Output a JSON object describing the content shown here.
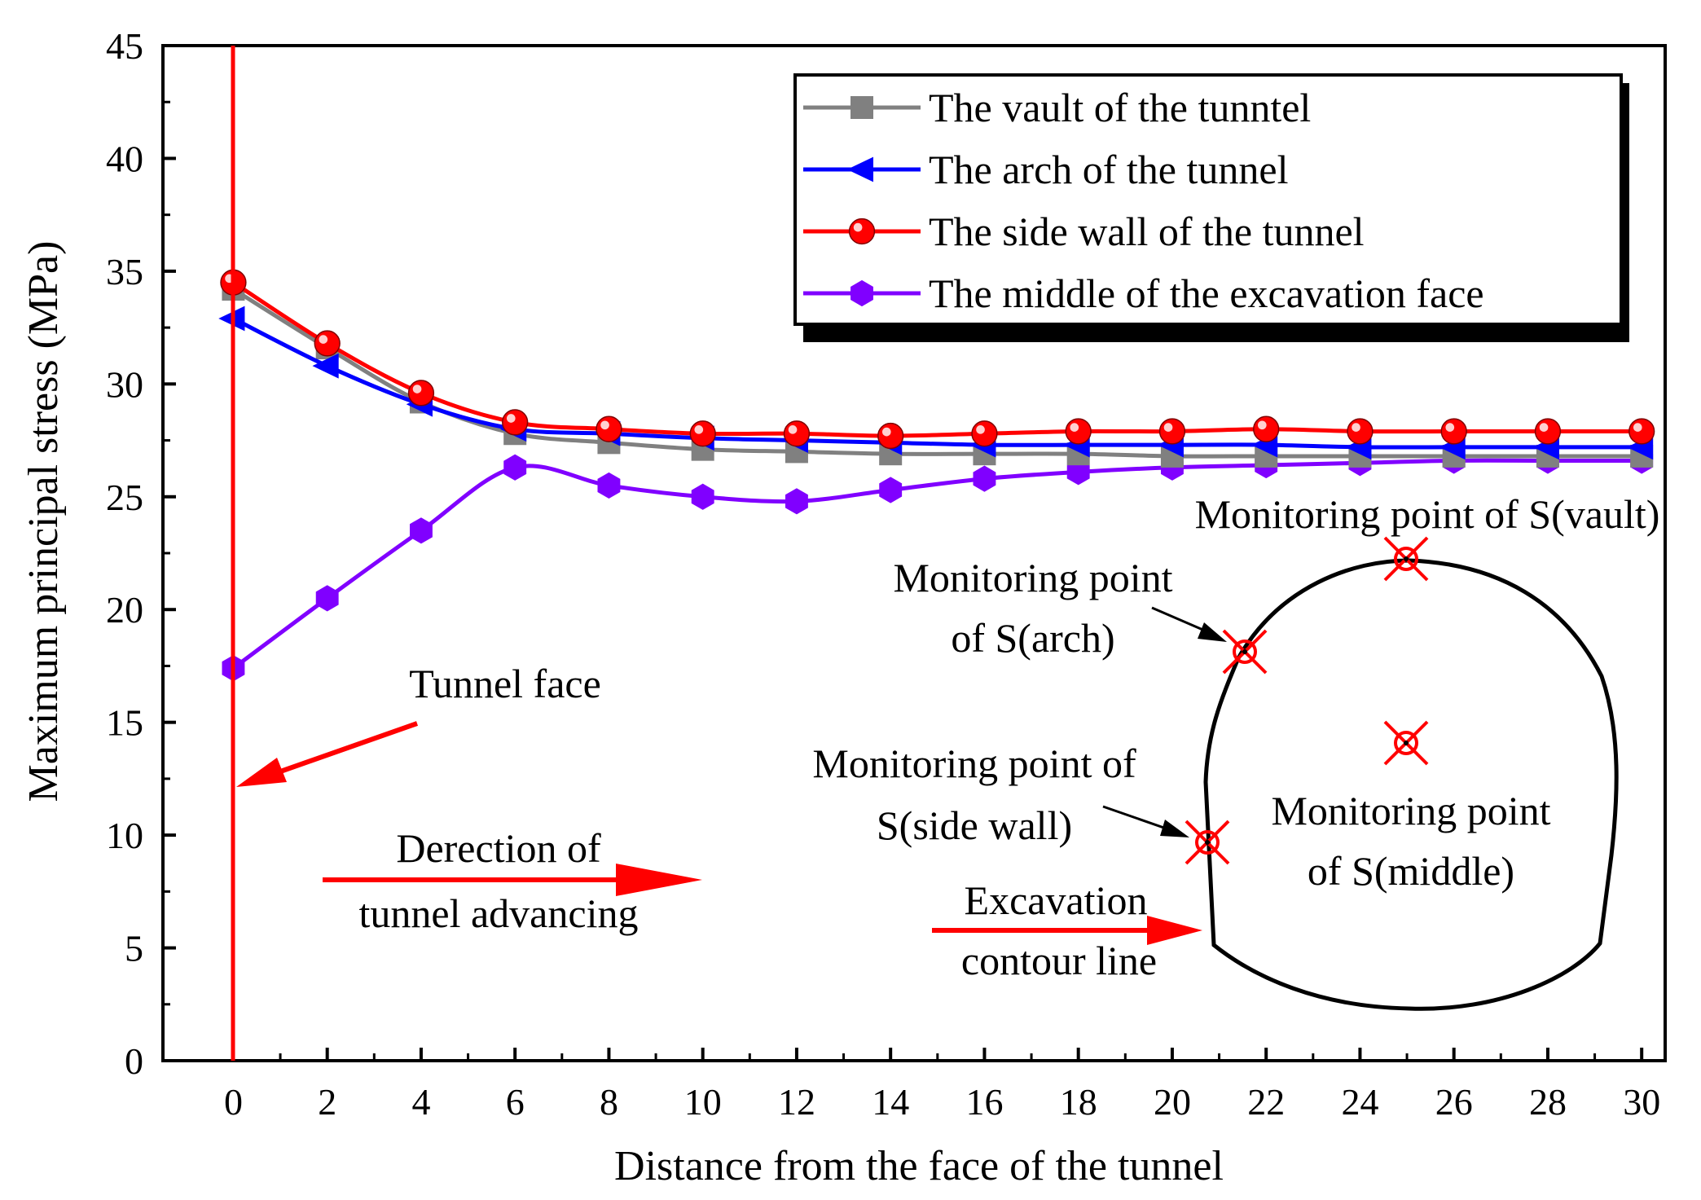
{
  "chart_data": {
    "type": "line",
    "xlabel": "Distance from the face of the tunnel",
    "ylabel": "Maximum principal stress  (MPa)",
    "xlim": [
      -1.5,
      30.5
    ],
    "ylim": [
      0,
      45
    ],
    "xticks": [
      0,
      2,
      4,
      6,
      8,
      10,
      12,
      14,
      16,
      18,
      20,
      22,
      24,
      26,
      28,
      30
    ],
    "yticks": [
      0,
      5,
      10,
      15,
      20,
      25,
      30,
      35,
      40,
      45
    ],
    "x": [
      0,
      2,
      4,
      6,
      8,
      10,
      12,
      14,
      16,
      18,
      20,
      22,
      24,
      26,
      28,
      30
    ],
    "series": [
      {
        "name": "The vault of the tunntel",
        "color": "#808080",
        "marker": "square",
        "values": [
          34.2,
          31.6,
          29.2,
          27.8,
          27.4,
          27.1,
          27.0,
          26.9,
          26.9,
          26.9,
          26.8,
          26.8,
          26.8,
          26.8,
          26.8,
          26.8
        ]
      },
      {
        "name": "The arch of the tunnel",
        "color": "#0000ff",
        "marker": "triangle-left",
        "values": [
          32.9,
          30.8,
          29.1,
          28.0,
          27.8,
          27.6,
          27.5,
          27.4,
          27.3,
          27.3,
          27.3,
          27.3,
          27.2,
          27.2,
          27.2,
          27.2
        ]
      },
      {
        "name": "The side wall of the tunnel",
        "color": "#ff0000",
        "marker": "circle",
        "values": [
          34.5,
          31.8,
          29.6,
          28.3,
          28.0,
          27.8,
          27.8,
          27.7,
          27.8,
          27.9,
          27.9,
          28.0,
          27.9,
          27.9,
          27.9,
          27.9
        ]
      },
      {
        "name": "The middle of the excavation face",
        "color": "#8000ff",
        "marker": "hexagon",
        "values": [
          17.4,
          20.5,
          23.5,
          26.3,
          25.5,
          25.0,
          24.8,
          25.3,
          25.8,
          26.1,
          26.3,
          26.4,
          26.5,
          26.6,
          26.6,
          26.6
        ]
      }
    ],
    "legend_position": "top-right",
    "annotations": {
      "tunnel_face": "Tunnel face",
      "direction_line1": "Derection of",
      "direction_line2": "tunnel advancing",
      "contour_line1": "Excavation",
      "contour_line2": "contour line",
      "vault_point": "Monitoring point of S(vault)",
      "arch_line1": "Monitoring point",
      "arch_line2": "of S(arch)",
      "side_line1": "Monitoring point of",
      "side_line2": "S(side wall)",
      "middle_line1": "Monitoring point",
      "middle_line2": "of  S(middle)"
    },
    "colors": {
      "annotation": "#ff0000",
      "frame": "#000000"
    }
  }
}
